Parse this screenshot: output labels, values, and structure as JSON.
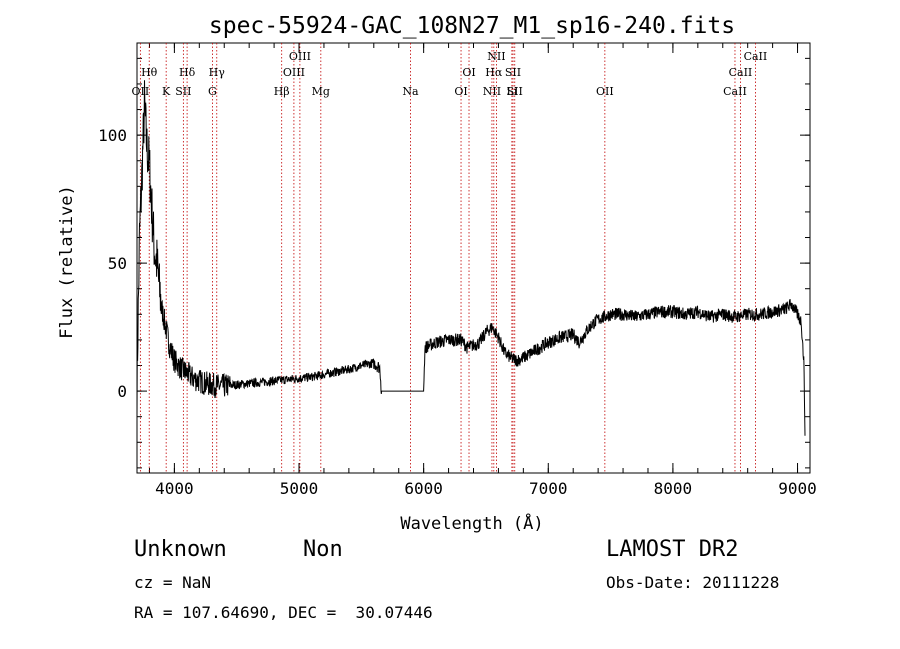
{
  "chart_data": {
    "type": "line",
    "title": "spec-55924-GAC_108N27_M1_sp16-240.fits",
    "xlabel": "Wavelength (Å)",
    "ylabel": "Flux (relative)",
    "xlim": [
      3700,
      9100
    ],
    "ylim": [
      -32,
      136
    ],
    "xticks": [
      4000,
      5000,
      6000,
      7000,
      8000,
      9000
    ],
    "yticks": [
      0,
      50,
      100
    ],
    "series": [
      {
        "x": [
          3700,
          3720,
          3740,
          3760,
          3780,
          3800,
          3820,
          3840,
          3860,
          3880,
          3900,
          3930,
          3960,
          4000,
          4050,
          4100,
          4150,
          4200,
          4250,
          4300,
          4350,
          4400,
          4500,
          4600,
          4700,
          4800,
          4900,
          5000,
          5100,
          5200,
          5300,
          5400,
          5500,
          5600,
          5650,
          5660,
          6000,
          6010,
          6050,
          6100,
          6200,
          6300,
          6350,
          6400,
          6450,
          6500,
          6550,
          6600,
          6650,
          6700,
          6750,
          6800,
          6900,
          7000,
          7100,
          7200,
          7250,
          7300,
          7350,
          7400,
          7450,
          7500,
          7600,
          7700,
          7800,
          7900,
          8000,
          8100,
          8200,
          8300,
          8400,
          8500,
          8600,
          8700,
          8800,
          8900,
          8950,
          9000,
          9030,
          9050,
          9060
        ],
        "y": [
          2,
          60,
          85,
          112,
          95,
          88,
          70,
          55,
          50,
          40,
          32,
          25,
          18,
          12,
          9,
          7,
          5,
          4,
          3,
          2.5,
          2,
          2,
          2.5,
          3,
          3.5,
          4,
          4.5,
          5,
          5.5,
          6.5,
          7.5,
          8.5,
          10,
          11,
          9,
          0,
          0,
          17,
          18,
          19,
          20,
          20,
          17,
          18,
          19,
          23,
          25,
          21,
          15,
          13,
          12,
          13,
          16,
          19,
          21,
          22,
          19,
          23,
          26,
          28,
          29,
          30,
          30,
          29,
          30,
          31,
          31,
          30,
          31,
          29,
          30,
          29,
          30,
          30,
          31,
          32,
          34,
          30,
          27,
          12,
          -15
        ]
      }
    ],
    "lines": [
      {
        "x": 3727,
        "label": "OII"
      },
      {
        "x": 3798,
        "label": "Hθ"
      },
      {
        "x": 3934,
        "label": "K"
      },
      {
        "x": 4072,
        "label": "SII"
      },
      {
        "x": 4102,
        "label": "Hδ"
      },
      {
        "x": 4305,
        "label": "G"
      },
      {
        "x": 4340,
        "label": "Hγ"
      },
      {
        "x": 4861,
        "label": "Hβ"
      },
      {
        "x": 4959,
        "label": "OIII"
      },
      {
        "x": 5007,
        "label": "OIII"
      },
      {
        "x": 5175,
        "label": "Mg"
      },
      {
        "x": 5894,
        "label": "Na"
      },
      {
        "x": 6300,
        "label": "OI"
      },
      {
        "x": 6364,
        "label": "OI"
      },
      {
        "x": 6548,
        "label": "NII"
      },
      {
        "x": 6563,
        "label": "Hα"
      },
      {
        "x": 6584,
        "label": "NII"
      },
      {
        "x": 6708,
        "label": "Li"
      },
      {
        "x": 6717,
        "label": "SII"
      },
      {
        "x": 6731,
        "label": "SII"
      },
      {
        "x": 7454,
        "label": "OII"
      },
      {
        "x": 8498,
        "label": "CaII"
      },
      {
        "x": 8542,
        "label": "CaII"
      },
      {
        "x": 8662,
        "label": "CaII"
      }
    ]
  },
  "info": {
    "class": "Unknown",
    "subclass": "Non",
    "cz": "cz = NaN",
    "coords": "RA = 107.64690, DEC =  30.07446",
    "survey": "LAMOST DR2",
    "obs_date": "Obs-Date: 20111228"
  }
}
